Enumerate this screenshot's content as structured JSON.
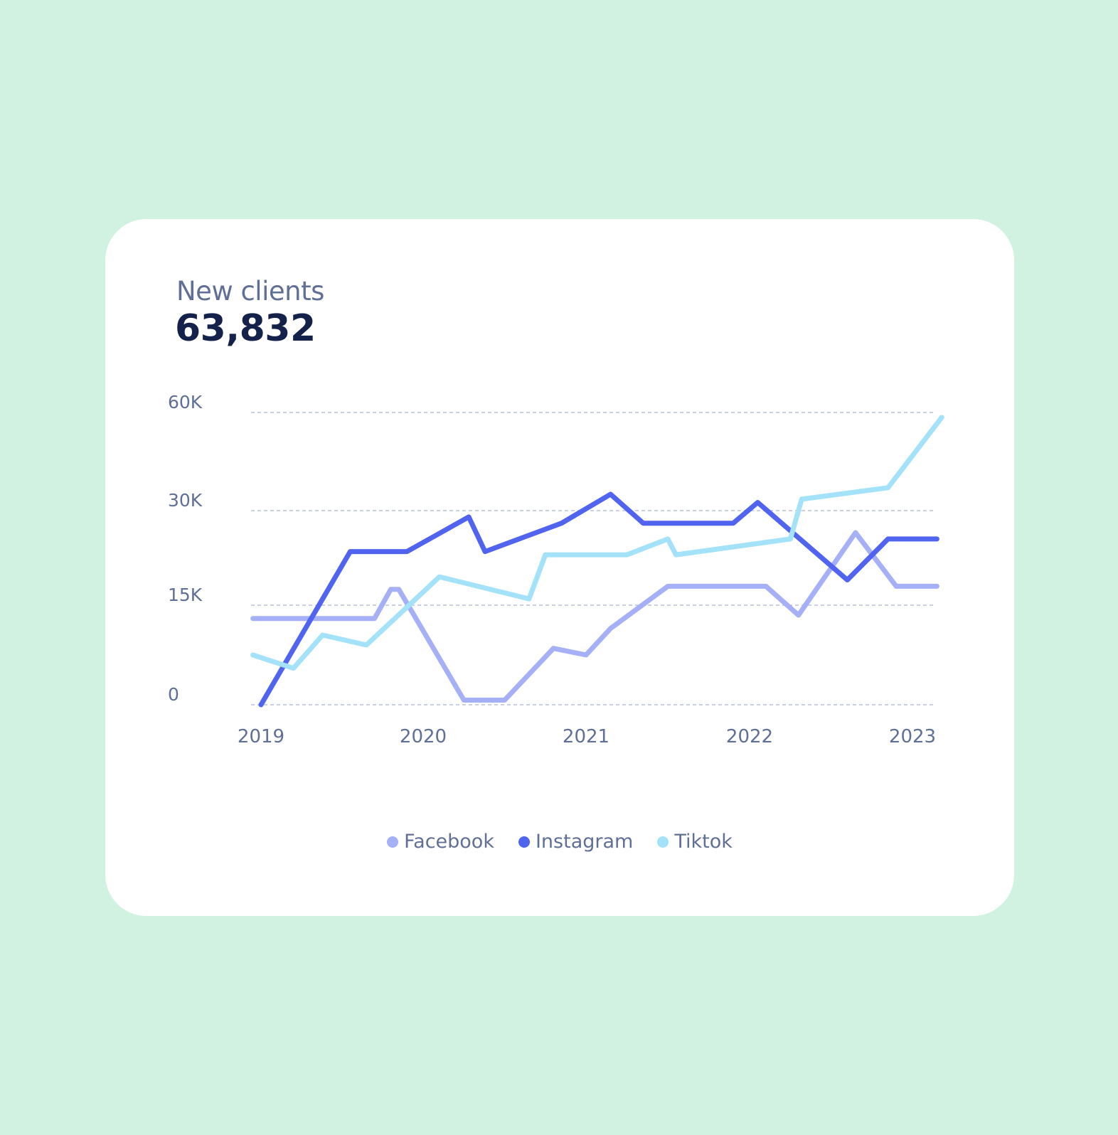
{
  "card": {
    "title": "New clients",
    "value": "63,832"
  },
  "chart_data": {
    "type": "line",
    "title": "",
    "xlabel": "",
    "ylabel": "",
    "x_ticks": [
      "2019",
      "2020",
      "2021",
      "2022",
      "2023"
    ],
    "y_ticks": [
      {
        "value": 0,
        "label": "0"
      },
      {
        "value": 15000,
        "label": "15K"
      },
      {
        "value": 30000,
        "label": "30K"
      },
      {
        "value": 60000,
        "label": "60K"
      }
    ],
    "y_scale": "non-linear (tick labels 0, 15K, 30K, 60K evenly-ish spaced)",
    "grid": "horizontal dashed",
    "legend_position": "bottom-center",
    "xlim": [
      2019.0,
      2023.2
    ],
    "series": [
      {
        "name": "Facebook",
        "color": "#a5b0f7",
        "points": [
          [
            2018.95,
            13000
          ],
          [
            2019.7,
            13000
          ],
          [
            2019.8,
            17500
          ],
          [
            2019.85,
            17500
          ],
          [
            2020.25,
            700
          ],
          [
            2020.5,
            700
          ],
          [
            2020.8,
            8500
          ],
          [
            2021.0,
            7500
          ],
          [
            2021.15,
            11500
          ],
          [
            2021.5,
            18000
          ],
          [
            2022.1,
            18000
          ],
          [
            2022.3,
            13500
          ],
          [
            2022.65,
            26500
          ],
          [
            2022.9,
            18000
          ],
          [
            2023.15,
            18000
          ]
        ]
      },
      {
        "name": "Instagram",
        "color": "#5064f0",
        "points": [
          [
            2019.0,
            0
          ],
          [
            2019.55,
            23500
          ],
          [
            2019.9,
            23500
          ],
          [
            2020.28,
            29000
          ],
          [
            2020.38,
            23500
          ],
          [
            2020.85,
            28000
          ],
          [
            2021.15,
            35000
          ],
          [
            2021.35,
            28000
          ],
          [
            2021.9,
            28000
          ],
          [
            2022.05,
            32500
          ],
          [
            2022.6,
            19000
          ],
          [
            2022.85,
            25500
          ],
          [
            2023.15,
            25500
          ]
        ]
      },
      {
        "name": "Tiktok",
        "color": "#a3e2f8",
        "points": [
          [
            2018.95,
            7500
          ],
          [
            2019.2,
            5500
          ],
          [
            2019.38,
            10500
          ],
          [
            2019.65,
            9000
          ],
          [
            2020.1,
            19500
          ],
          [
            2020.65,
            16000
          ],
          [
            2020.75,
            23000
          ],
          [
            2021.25,
            23000
          ],
          [
            2021.5,
            25500
          ],
          [
            2021.55,
            23000
          ],
          [
            2022.25,
            25500
          ],
          [
            2022.32,
            33500
          ],
          [
            2022.85,
            37000
          ],
          [
            2023.18,
            58500
          ]
        ]
      }
    ]
  }
}
